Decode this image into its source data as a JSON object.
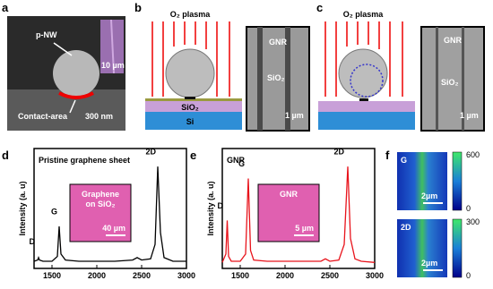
{
  "panels": {
    "a": {
      "label": "a",
      "texts": [
        "p-NW",
        "10 µm",
        "Contact-area",
        "300 nm"
      ]
    },
    "b": {
      "label": "b",
      "plasma": "O₂ plasma",
      "layer_top": "SiO₂",
      "layer_bottom": "Si",
      "sem_gnr": "GNR",
      "sem_sio2": "SiO₂",
      "sem_scale": "1 µm"
    },
    "c": {
      "label": "c",
      "plasma": "O₂ plasma",
      "sem_gnr": "GNR",
      "sem_sio2": "SiO₂",
      "sem_scale": "1 µm"
    },
    "f": {
      "label": "f",
      "top": {
        "name": "G",
        "scale": "2µm",
        "cmax": "600",
        "cmin": "0"
      },
      "bottom": {
        "name": "2D",
        "scale": "2µm",
        "cmax": "300",
        "cmin": "0"
      }
    }
  },
  "chart_data": [
    {
      "type": "line",
      "label": "d",
      "title": "Pristine graphene sheet",
      "y_label": "Intensity (a. u)",
      "x": [
        1300,
        1340,
        1350,
        1360,
        1400,
        1500,
        1560,
        1580,
        1600,
        1650,
        1800,
        2000,
        2200,
        2400,
        2450,
        2500,
        2600,
        2650,
        2680,
        2710,
        2750,
        2850,
        3000
      ],
      "values": [
        6,
        7,
        9,
        7,
        6,
        6,
        10,
        35,
        12,
        7,
        6,
        6,
        6,
        7,
        9,
        7,
        8,
        20,
        85,
        30,
        9,
        6,
        6
      ],
      "color": "#000000",
      "xlim": [
        1300,
        3000
      ],
      "ylim": [
        0,
        100
      ],
      "xticks": [
        1500,
        2000,
        2500,
        3000
      ],
      "peak_labels": [
        "D",
        "G",
        "2D"
      ],
      "inset_lines": [
        "Graphene",
        "on SiO₂"
      ],
      "inset_scale": "40 µm"
    },
    {
      "type": "line",
      "label": "e",
      "title": "GNR",
      "y_label": "Intensity (a. u)",
      "x": [
        1300,
        1340,
        1355,
        1370,
        1400,
        1500,
        1560,
        1590,
        1615,
        1650,
        1800,
        2000,
        2200,
        2400,
        2450,
        2500,
        2600,
        2660,
        2700,
        2730,
        2780,
        2850,
        3000
      ],
      "values": [
        5,
        12,
        40,
        10,
        6,
        6,
        12,
        75,
        15,
        7,
        6,
        6,
        6,
        6,
        8,
        6,
        7,
        20,
        85,
        25,
        8,
        6,
        5
      ],
      "color": "#e8141c",
      "xlim": [
        1300,
        3000
      ],
      "ylim": [
        0,
        100
      ],
      "xticks": [
        1500,
        2000,
        2500,
        3000
      ],
      "peak_labels": [
        "D",
        "G",
        "2D"
      ],
      "inset_lines": [
        "GNR"
      ],
      "inset_scale": "5 µm"
    }
  ]
}
